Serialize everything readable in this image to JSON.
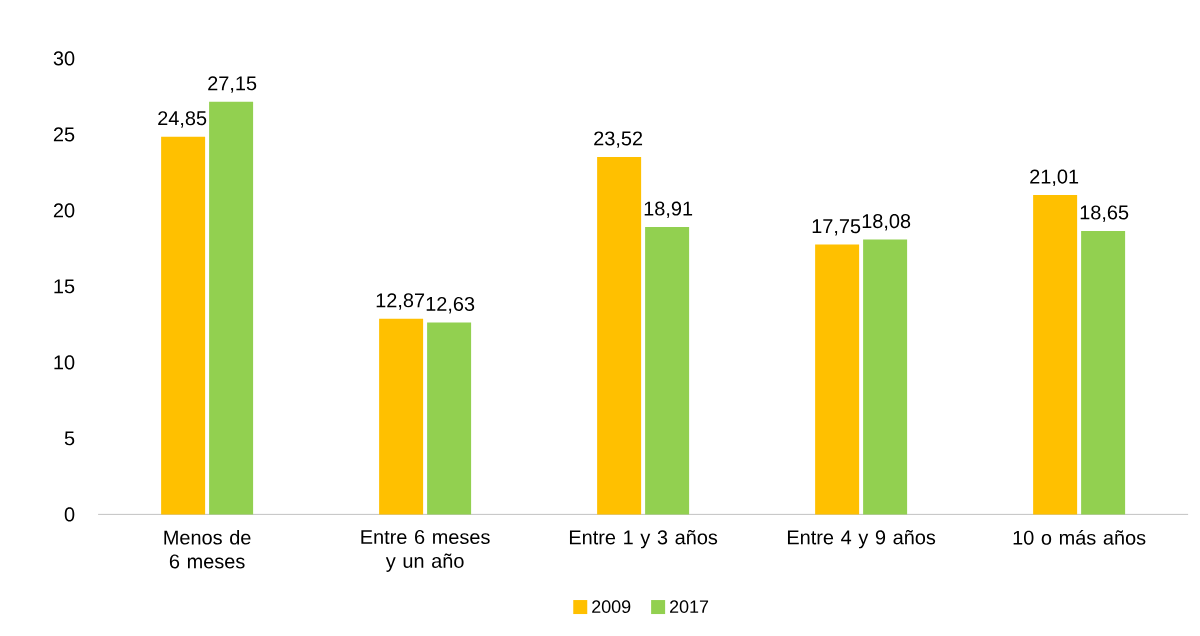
{
  "chart_data": {
    "type": "bar",
    "categories": [
      "Menos de 6 meses",
      "Entre 6 meses y un año",
      "Entre 1 y 3 años",
      "Entre 4 y 9 años",
      "10 o más años"
    ],
    "series": [
      {
        "name": "2009",
        "color": "#ffc000",
        "values": [
          24.85,
          12.87,
          23.52,
          17.75,
          21.01
        ],
        "value_labels": [
          "24,85",
          "12,87",
          "23,52",
          "17,75",
          "21,01"
        ]
      },
      {
        "name": "2017",
        "color": "#92d050",
        "values": [
          27.15,
          12.63,
          18.91,
          18.08,
          18.65
        ],
        "value_labels": [
          "27,15",
          "12,63",
          "18,91",
          "18,08",
          "18,65"
        ]
      }
    ],
    "ylim": [
      0,
      30
    ],
    "yticks": [
      0,
      5,
      10,
      15,
      20,
      25,
      30
    ],
    "legend": "bottom"
  }
}
